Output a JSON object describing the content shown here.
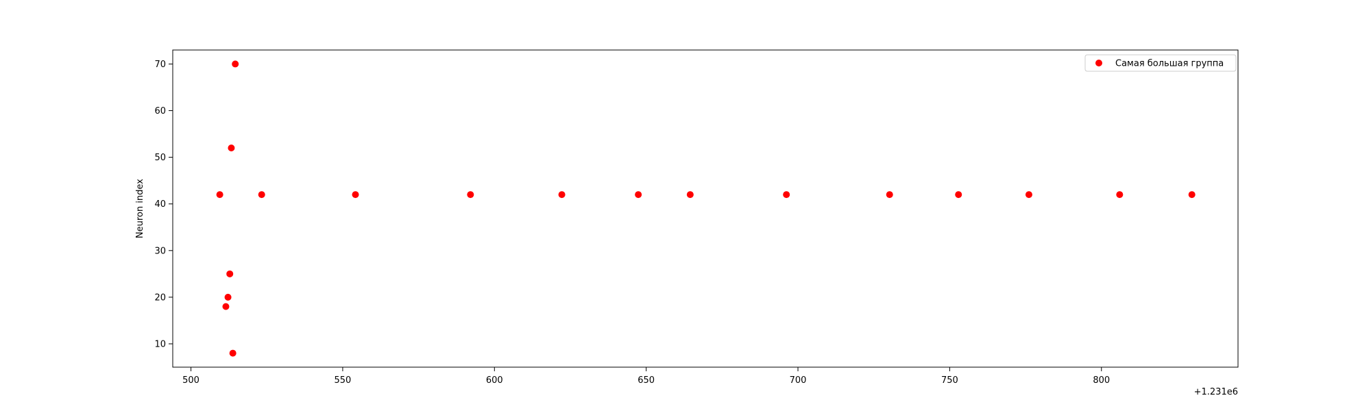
{
  "chart_data": {
    "type": "scatter",
    "title": "",
    "xlabel": "",
    "ylabel": "Neuron index",
    "x_offset_label": "+1.231e6",
    "xlim": [
      494,
      845
    ],
    "ylim": [
      5,
      73
    ],
    "xticks": [
      500,
      550,
      600,
      650,
      700,
      750,
      800
    ],
    "xtick_labels": [
      "500",
      "550",
      "600",
      "650",
      "700",
      "750",
      "800"
    ],
    "yticks": [
      10,
      20,
      30,
      40,
      50,
      60,
      70
    ],
    "ytick_labels": [
      "10",
      "20",
      "30",
      "40",
      "50",
      "60",
      "70"
    ],
    "grid": false,
    "legend_position": "top-right",
    "series": [
      {
        "name": "Самая большая группа",
        "color": "#ff0000",
        "marker": "circle",
        "points": [
          {
            "x": 509.5,
            "y": 42
          },
          {
            "x": 511.5,
            "y": 18
          },
          {
            "x": 512.2,
            "y": 20
          },
          {
            "x": 512.8,
            "y": 25
          },
          {
            "x": 513.3,
            "y": 52
          },
          {
            "x": 513.8,
            "y": 8
          },
          {
            "x": 514.6,
            "y": 70
          },
          {
            "x": 523.3,
            "y": 42
          },
          {
            "x": 554.2,
            "y": 42
          },
          {
            "x": 592.1,
            "y": 42
          },
          {
            "x": 622.2,
            "y": 42
          },
          {
            "x": 647.4,
            "y": 42
          },
          {
            "x": 664.5,
            "y": 42
          },
          {
            "x": 696.2,
            "y": 42
          },
          {
            "x": 730.2,
            "y": 42
          },
          {
            "x": 752.9,
            "y": 42
          },
          {
            "x": 776.1,
            "y": 42
          },
          {
            "x": 806.0,
            "y": 42
          },
          {
            "x": 829.8,
            "y": 42
          }
        ]
      }
    ]
  }
}
